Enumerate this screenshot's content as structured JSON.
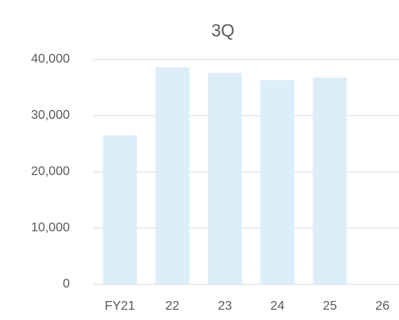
{
  "chart_data": {
    "type": "bar",
    "title": "3Q",
    "categories": [
      "FY21",
      "22",
      "23",
      "24",
      "25",
      "26"
    ],
    "values": [
      26500,
      38600,
      37600,
      36300,
      36800,
      null
    ],
    "color": "#ddeefb",
    "ylim": [
      0,
      40000
    ],
    "yticks": [
      0,
      {
        "value": 10000,
        "label": "10,000"
      },
      {
        "value": 20000,
        "label": "20,000"
      },
      {
        "value": 30000,
        "label": "30,000"
      },
      {
        "value": 40000,
        "label": "40,000"
      }
    ],
    "grid": true
  }
}
